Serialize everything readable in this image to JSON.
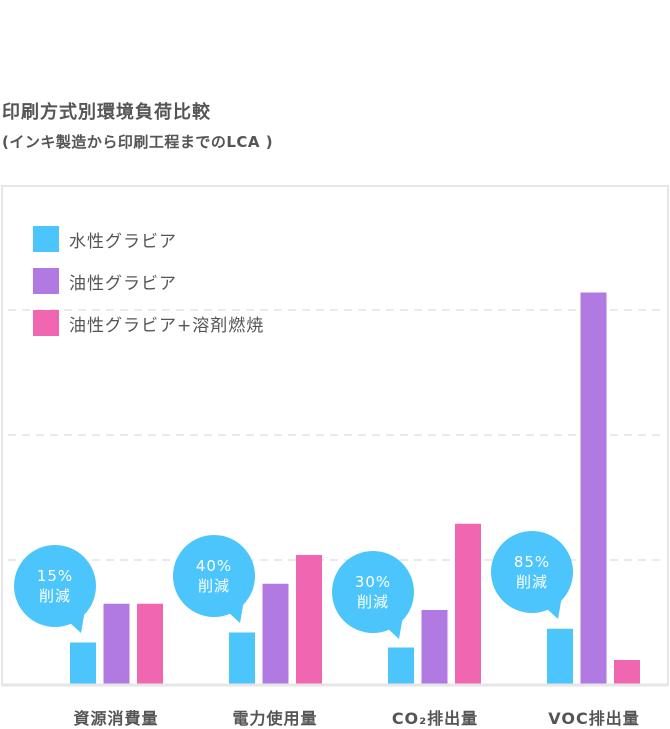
{
  "title": "印刷方式別環境負荷比較",
  "subtitle": "(インキ製造から印刷工程までのLCA )",
  "chart_data": {
    "type": "bar",
    "categories": [
      "資源消費量",
      "電力使用量",
      "CO₂排出量",
      "VOC排出量"
    ],
    "series": [
      {
        "name": "水性グラビア",
        "color": "#4bc5fb",
        "values": [
          0.34,
          0.42,
          0.3,
          0.45
        ]
      },
      {
        "name": "油性グラビア",
        "color": "#b07ae2",
        "values": [
          0.65,
          0.81,
          0.6,
          3.14
        ]
      },
      {
        "name": "油性グラビア+溶剤燃焼",
        "color": "#f166b1",
        "values": [
          0.65,
          1.04,
          1.29,
          0.2
        ]
      }
    ],
    "ylim": [
      0,
      4
    ],
    "grid": true,
    "legend": "top-left",
    "annotations": [
      {
        "percent": "15%",
        "text": "削減"
      },
      {
        "percent": "40%",
        "text": "削減"
      },
      {
        "percent": "30%",
        "text": "削減"
      },
      {
        "percent": "85%",
        "text": "削減"
      }
    ],
    "annotation_color": "#4bc5fb"
  }
}
